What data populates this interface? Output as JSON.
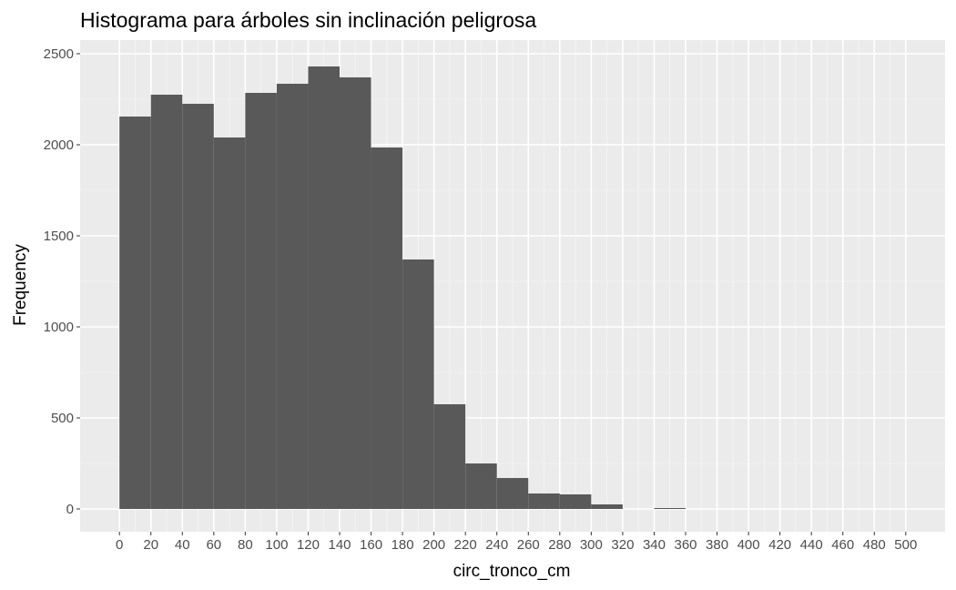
{
  "chart_data": {
    "type": "bar",
    "title": "Histograma para árboles sin inclinación peligrosa",
    "xlabel": "circ_tronco_cm",
    "ylabel": "Frequency",
    "bin_width": 20,
    "bins": [
      {
        "start": 0,
        "end": 20,
        "count": 2155
      },
      {
        "start": 20,
        "end": 40,
        "count": 2275
      },
      {
        "start": 40,
        "end": 60,
        "count": 2225
      },
      {
        "start": 60,
        "end": 80,
        "count": 2040
      },
      {
        "start": 80,
        "end": 100,
        "count": 2285
      },
      {
        "start": 100,
        "end": 120,
        "count": 2335
      },
      {
        "start": 120,
        "end": 140,
        "count": 2430
      },
      {
        "start": 140,
        "end": 160,
        "count": 2370
      },
      {
        "start": 160,
        "end": 180,
        "count": 1985
      },
      {
        "start": 180,
        "end": 200,
        "count": 1370
      },
      {
        "start": 200,
        "end": 220,
        "count": 575
      },
      {
        "start": 220,
        "end": 240,
        "count": 250
      },
      {
        "start": 240,
        "end": 260,
        "count": 170
      },
      {
        "start": 260,
        "end": 280,
        "count": 85
      },
      {
        "start": 280,
        "end": 300,
        "count": 80
      },
      {
        "start": 300,
        "end": 320,
        "count": 25
      },
      {
        "start": 320,
        "end": 340,
        "count": 0
      },
      {
        "start": 340,
        "end": 360,
        "count": 5
      },
      {
        "start": 360,
        "end": 380,
        "count": 0
      },
      {
        "start": 380,
        "end": 400,
        "count": 0
      },
      {
        "start": 400,
        "end": 420,
        "count": 0
      },
      {
        "start": 420,
        "end": 440,
        "count": 0
      },
      {
        "start": 440,
        "end": 460,
        "count": 0
      },
      {
        "start": 460,
        "end": 480,
        "count": 0
      },
      {
        "start": 480,
        "end": 500,
        "count": 0
      }
    ],
    "x_ticks": [
      0,
      20,
      40,
      60,
      80,
      100,
      120,
      140,
      160,
      180,
      200,
      220,
      240,
      260,
      280,
      300,
      320,
      340,
      360,
      380,
      400,
      420,
      440,
      460,
      480,
      500
    ],
    "y_ticks": [
      0,
      500,
      1000,
      1500,
      2000,
      2500
    ],
    "xlim": [
      -25,
      525
    ],
    "ylim": [
      -125,
      2575
    ],
    "grid": true,
    "colors": {
      "bar": "#595959",
      "panel_bg": "#ebebeb",
      "grid_major": "#ffffff",
      "grid_minor": "#f5f5f5",
      "tick_label": "#4d4d4d",
      "tick_mark": "#333333"
    }
  }
}
